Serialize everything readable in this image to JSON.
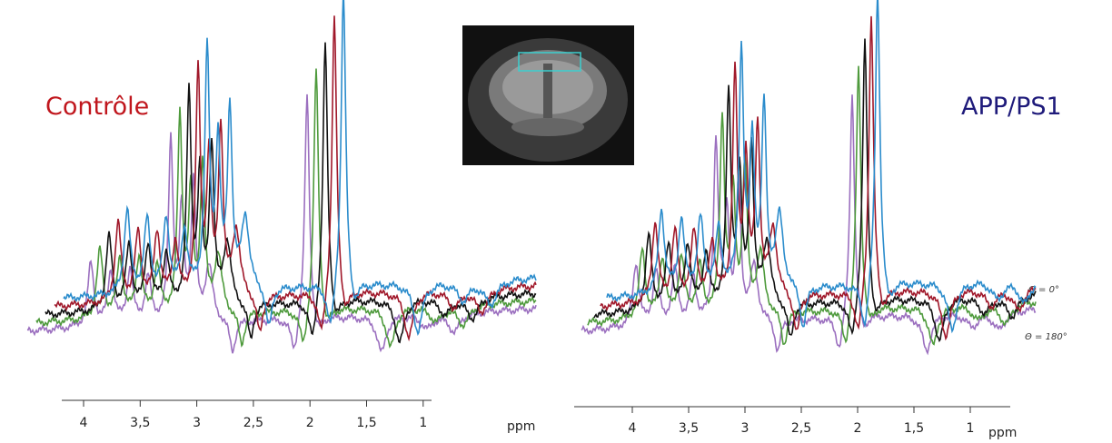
{
  "left": {
    "title": "Contrôle",
    "ticks": [
      "4",
      "3,5",
      "3",
      "2,5",
      "2",
      "1,5",
      "1"
    ],
    "unit": "ppm"
  },
  "right": {
    "title": "APP/PS1",
    "ticks": [
      "4",
      "3,5",
      "3",
      "2,5",
      "2",
      "1,5",
      "1"
    ],
    "unit": "ppm",
    "angle_labels": [
      "Θ = 0°",
      "Θ = 180°"
    ]
  }
}
